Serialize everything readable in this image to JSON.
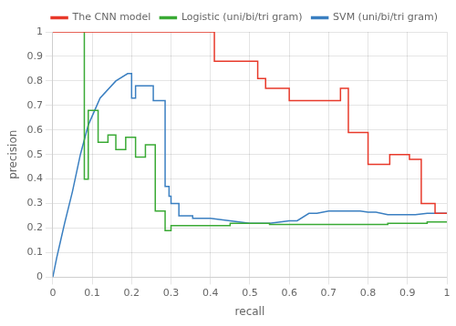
{
  "chart_data": {
    "type": "line",
    "xlabel": "recall",
    "ylabel": "precision",
    "xlim": [
      0,
      1
    ],
    "ylim": [
      0,
      1
    ],
    "xticks": [
      0,
      0.1,
      0.2,
      0.3,
      0.4,
      0.5,
      0.6,
      0.7,
      0.8,
      0.9,
      1
    ],
    "yticks": [
      0,
      0.1,
      0.2,
      0.3,
      0.4,
      0.5,
      0.6,
      0.7,
      0.8,
      0.9,
      1
    ],
    "grid": true,
    "legend": "upper right",
    "series": [
      {
        "name": "The CNN model",
        "color": "#e8392a",
        "x": [
          0.0,
          0.07,
          0.07,
          0.41,
          0.41,
          0.52,
          0.52,
          0.54,
          0.54,
          0.6,
          0.6,
          0.73,
          0.73,
          0.75,
          0.75,
          0.8,
          0.8,
          0.855,
          0.855,
          0.905,
          0.905,
          0.935,
          0.935,
          0.97,
          0.97,
          1.0
        ],
        "values": [
          1.0,
          1.0,
          1.0,
          1.0,
          0.88,
          0.88,
          0.81,
          0.81,
          0.77,
          0.77,
          0.72,
          0.72,
          0.77,
          0.77,
          0.59,
          0.59,
          0.46,
          0.46,
          0.5,
          0.5,
          0.48,
          0.48,
          0.3,
          0.3,
          0.26,
          0.26
        ]
      },
      {
        "name": "Logistic (uni/bi/tri gram)",
        "color": "#3aaa35",
        "x": [
          0.08,
          0.08,
          0.09,
          0.09,
          0.115,
          0.115,
          0.14,
          0.14,
          0.16,
          0.16,
          0.185,
          0.185,
          0.21,
          0.21,
          0.235,
          0.235,
          0.26,
          0.26,
          0.285,
          0.285,
          0.3,
          0.3,
          0.45,
          0.45,
          0.55,
          0.55,
          0.65,
          0.65,
          0.75,
          0.75,
          0.85,
          0.85,
          0.95,
          0.95,
          1.0
        ],
        "values": [
          1.0,
          0.4,
          0.4,
          0.68,
          0.68,
          0.55,
          0.55,
          0.58,
          0.58,
          0.52,
          0.52,
          0.57,
          0.57,
          0.49,
          0.49,
          0.54,
          0.54,
          0.27,
          0.27,
          0.19,
          0.19,
          0.21,
          0.21,
          0.22,
          0.22,
          0.215,
          0.215,
          0.215,
          0.215,
          0.215,
          0.215,
          0.22,
          0.22,
          0.225,
          0.225
        ]
      },
      {
        "name": "SVM (uni/bi/tri gram)",
        "color": "#3a7fc1",
        "x": [
          0.0,
          0.01,
          0.02,
          0.03,
          0.05,
          0.07,
          0.09,
          0.12,
          0.16,
          0.19,
          0.2,
          0.2,
          0.21,
          0.21,
          0.255,
          0.255,
          0.285,
          0.285,
          0.295,
          0.295,
          0.3,
          0.3,
          0.32,
          0.32,
          0.355,
          0.355,
          0.4,
          0.5,
          0.55,
          0.6,
          0.62,
          0.65,
          0.67,
          0.7,
          0.72,
          0.75,
          0.78,
          0.8,
          0.82,
          0.85,
          0.87,
          0.9,
          0.92,
          0.95,
          0.97,
          1.0
        ],
        "values": [
          0.0,
          0.08,
          0.15,
          0.22,
          0.35,
          0.5,
          0.62,
          0.73,
          0.8,
          0.83,
          0.83,
          0.73,
          0.73,
          0.78,
          0.78,
          0.72,
          0.72,
          0.37,
          0.37,
          0.33,
          0.33,
          0.3,
          0.3,
          0.25,
          0.25,
          0.24,
          0.24,
          0.22,
          0.22,
          0.23,
          0.23,
          0.26,
          0.26,
          0.27,
          0.27,
          0.27,
          0.27,
          0.265,
          0.265,
          0.255,
          0.255,
          0.255,
          0.255,
          0.26,
          0.26,
          0.26
        ]
      }
    ]
  }
}
